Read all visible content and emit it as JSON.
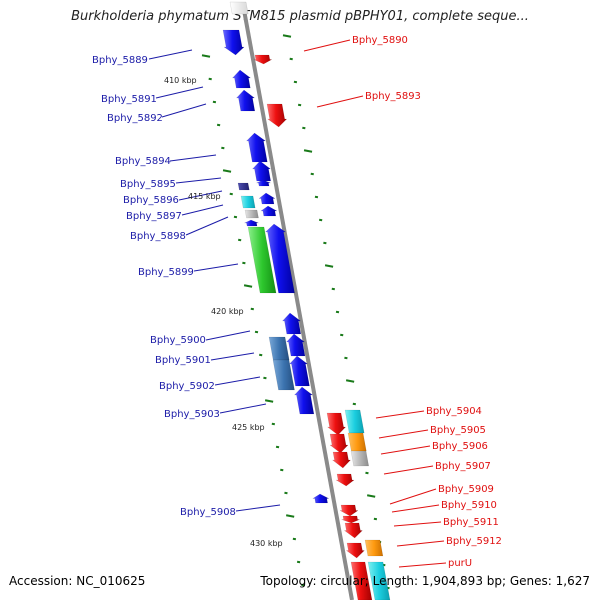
{
  "title": "Burkholderia phymatum STM815 plasmid pBPHY01, complete seque...",
  "footer": {
    "accession": "Accession: NC_010625",
    "summary": "Topology: circular; Length: 1,904,893 bp; Genes: 1,627"
  },
  "colors": {
    "axis": "#8a8a8a",
    "forward_label": "#1c1ca8",
    "reverse_label": "#e01010",
    "tick": "#1a7a1a",
    "blue_gene": "#1010ee",
    "red_gene": "#ee1010"
  },
  "scale_labels": [
    "410 kbp",
    "415 kbp",
    "420 kbp",
    "425 kbp",
    "430 kbp"
  ],
  "left_genes": [
    "Bphy_5889",
    "Bphy_5891",
    "Bphy_5892",
    "Bphy_5894",
    "Bphy_5895",
    "Bphy_5896",
    "Bphy_5897",
    "Bphy_5898",
    "Bphy_5899",
    "Bphy_5900",
    "Bphy_5901",
    "Bphy_5902",
    "Bphy_5903",
    "Bphy_5908"
  ],
  "right_genes": [
    "Bphy_5890",
    "Bphy_5893",
    "Bphy_5904",
    "Bphy_5905",
    "Bphy_5906",
    "Bphy_5907",
    "Bphy_5909",
    "Bphy_5910",
    "Bphy_5911",
    "Bphy_5912",
    "purU"
  ]
}
